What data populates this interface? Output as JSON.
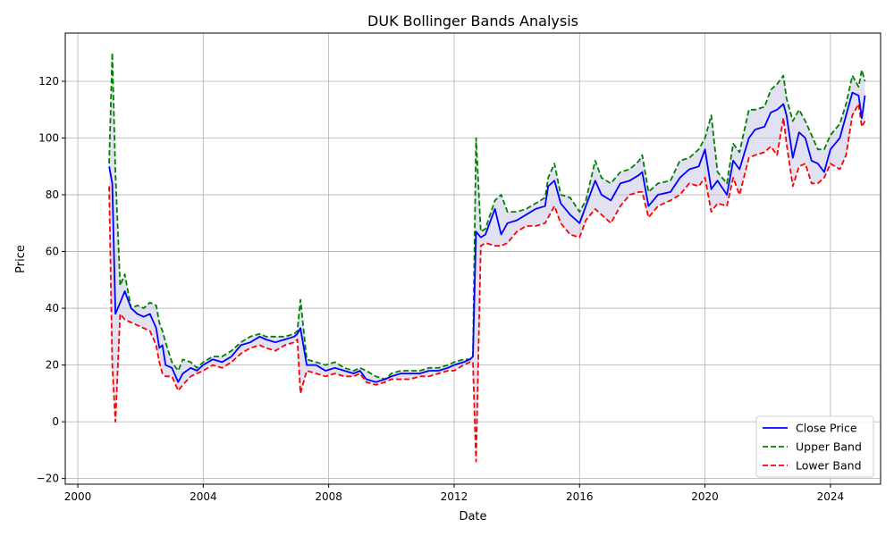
{
  "chart_data": {
    "type": "line",
    "title": "DUK Bollinger Bands Analysis",
    "xlabel": "Date",
    "ylabel": "Price",
    "xlim": [
      1999.6,
      2025.6
    ],
    "ylim": [
      -22,
      137
    ],
    "x_ticks": [
      2000,
      2004,
      2008,
      2012,
      2016,
      2020,
      2024
    ],
    "y_ticks": [
      -20,
      0,
      20,
      40,
      60,
      80,
      100,
      120
    ],
    "grid": true,
    "legend_position": "bottom-right",
    "band_fill_color": "#c8c8e6",
    "x": [
      2001.0,
      2001.1,
      2001.2,
      2001.35,
      2001.5,
      2001.7,
      2001.9,
      2002.1,
      2002.3,
      2002.5,
      2002.6,
      2002.7,
      2002.8,
      2003.0,
      2003.2,
      2003.35,
      2003.6,
      2003.8,
      2004.0,
      2004.3,
      2004.6,
      2004.9,
      2005.2,
      2005.5,
      2005.8,
      2006.0,
      2006.3,
      2006.6,
      2006.9,
      2007.0,
      2007.1,
      2007.3,
      2007.6,
      2007.9,
      2008.2,
      2008.5,
      2008.8,
      2009.0,
      2009.2,
      2009.5,
      2009.8,
      2010.0,
      2010.3,
      2010.6,
      2010.9,
      2011.2,
      2011.5,
      2011.8,
      2012.0,
      2012.3,
      2012.5,
      2012.6,
      2012.7,
      2012.85,
      2013.0,
      2013.3,
      2013.5,
      2013.7,
      2014.0,
      2014.3,
      2014.6,
      2014.9,
      2015.0,
      2015.2,
      2015.4,
      2015.7,
      2016.0,
      2016.2,
      2016.5,
      2016.7,
      2017.0,
      2017.3,
      2017.6,
      2017.9,
      2018.0,
      2018.2,
      2018.5,
      2018.9,
      2019.2,
      2019.5,
      2019.8,
      2020.0,
      2020.2,
      2020.4,
      2020.7,
      2020.9,
      2021.1,
      2021.4,
      2021.6,
      2021.9,
      2022.1,
      2022.3,
      2022.5,
      2022.6,
      2022.8,
      2023.0,
      2023.2,
      2023.4,
      2023.6,
      2023.8,
      2024.0,
      2024.3,
      2024.5,
      2024.7,
      2024.9,
      2025.0,
      2025.1
    ],
    "series": [
      {
        "name": "Close Price",
        "color": "#0000ff",
        "dash": "solid",
        "values": [
          90,
          84,
          38,
          42,
          46,
          40,
          38,
          37,
          38,
          33,
          26,
          27,
          20,
          19,
          14,
          17,
          19,
          18,
          20,
          22,
          21,
          23,
          27,
          28,
          30,
          29,
          28,
          29,
          30,
          31,
          33,
          20,
          20,
          18,
          19,
          18,
          17,
          18,
          15,
          14,
          15,
          16,
          17,
          17,
          17,
          18,
          18,
          19,
          20,
          21,
          22,
          23,
          67,
          65,
          66,
          75,
          66,
          70,
          71,
          73,
          75,
          76,
          83,
          85,
          77,
          73,
          70,
          76,
          85,
          80,
          78,
          84,
          85,
          87,
          88,
          76,
          80,
          81,
          86,
          89,
          90,
          96,
          82,
          85,
          80,
          92,
          89,
          100,
          103,
          104,
          109,
          110,
          112,
          108,
          93,
          102,
          100,
          92,
          91,
          88,
          96,
          100,
          108,
          116,
          115,
          107,
          115
        ]
      },
      {
        "name": "Upper Band",
        "color": "#008000",
        "dash": "dashed",
        "values": [
          91,
          130,
          88,
          48,
          52,
          40,
          41,
          40,
          42,
          41,
          35,
          32,
          28,
          21,
          18,
          22,
          21,
          19,
          21,
          23,
          23,
          25,
          28,
          30,
          31,
          30,
          30,
          30,
          31,
          32,
          43,
          22,
          21,
          20,
          21,
          19,
          18,
          19,
          18,
          16,
          15,
          17,
          18,
          18,
          18,
          19,
          19,
          20,
          21,
          22,
          22,
          23,
          100,
          67,
          68,
          78,
          80,
          74,
          74,
          75,
          77,
          79,
          86,
          91,
          80,
          79,
          74,
          78,
          92,
          86,
          84,
          88,
          89,
          92,
          94,
          81,
          84,
          85,
          92,
          93,
          96,
          100,
          108,
          88,
          84,
          98,
          95,
          110,
          110,
          111,
          117,
          119,
          122,
          114,
          106,
          110,
          106,
          101,
          96,
          96,
          101,
          105,
          112,
          122,
          118,
          124,
          120
        ]
      },
      {
        "name": "Lower Band",
        "color": "#ff0000",
        "dash": "dashed",
        "values": [
          83,
          20,
          0,
          38,
          36,
          35,
          34,
          33,
          32,
          27,
          21,
          17,
          16,
          16,
          11,
          13,
          16,
          17,
          18,
          20,
          19,
          21,
          24,
          26,
          27,
          26,
          25,
          27,
          28,
          29,
          10,
          18,
          17,
          16,
          17,
          16,
          16,
          17,
          14,
          13,
          14,
          15,
          15,
          15,
          16,
          16,
          17,
          18,
          18,
          20,
          21,
          21,
          -14,
          62,
          63,
          62,
          62,
          63,
          67,
          69,
          69,
          70,
          72,
          76,
          70,
          66,
          65,
          71,
          75,
          73,
          70,
          76,
          80,
          81,
          81,
          72,
          76,
          78,
          80,
          84,
          83,
          86,
          74,
          77,
          76,
          86,
          80,
          93,
          94,
          95,
          97,
          94,
          107,
          98,
          83,
          90,
          91,
          84,
          84,
          86,
          91,
          89,
          94,
          108,
          112,
          104,
          106
        ]
      }
    ]
  }
}
